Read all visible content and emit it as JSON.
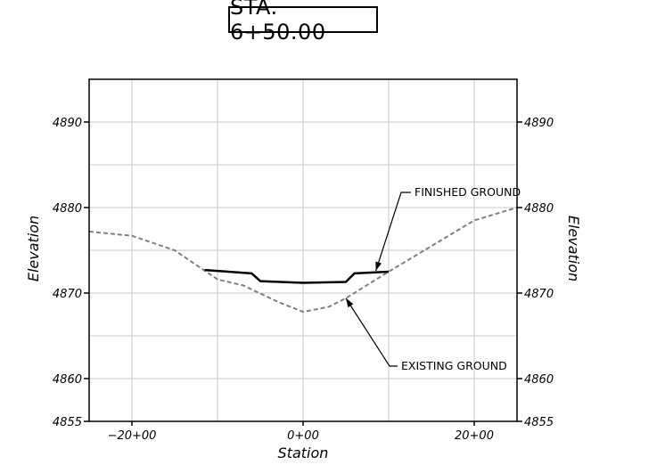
{
  "title": "STA. 6+50.00",
  "chart_data": {
    "type": "line",
    "title": "STA. 6+50.00",
    "xlabel": "Station",
    "ylabel": "Elevation",
    "ylabel_right": "Elevation",
    "xlim": [
      -25,
      25
    ],
    "ylim": [
      4855,
      4895
    ],
    "x_ticks": [
      {
        "value": -20,
        "label": "−20+00"
      },
      {
        "value": 0,
        "label": "0+00"
      },
      {
        "value": 20,
        "label": "20+00"
      }
    ],
    "y_ticks": [
      {
        "value": 4855,
        "label": "4855"
      },
      {
        "value": 4860,
        "label": "4860"
      },
      {
        "value": 4870,
        "label": "4870"
      },
      {
        "value": 4880,
        "label": "4880"
      },
      {
        "value": 4890,
        "label": "4890"
      }
    ],
    "grid": true,
    "series": [
      {
        "name": "EXISTING GROUND",
        "style": "dashed",
        "color": "#808080",
        "points": [
          [
            -25,
            4877.2
          ],
          [
            -20,
            4876.7
          ],
          [
            -15,
            4875.0
          ],
          [
            -10,
            4871.6
          ],
          [
            -7,
            4870.9
          ],
          [
            -3,
            4869.0
          ],
          [
            0,
            4867.8
          ],
          [
            3,
            4868.4
          ],
          [
            5,
            4869.4
          ],
          [
            10,
            4872.5
          ],
          [
            15,
            4875.5
          ],
          [
            20,
            4878.5
          ],
          [
            25,
            4880.0
          ]
        ]
      },
      {
        "name": "FINISHED GROUND",
        "style": "solid",
        "color": "#000000",
        "points": [
          [
            -11.5,
            4872.7
          ],
          [
            -6,
            4872.3
          ],
          [
            -5,
            4871.4
          ],
          [
            0,
            4871.2
          ],
          [
            5,
            4871.3
          ],
          [
            6,
            4872.3
          ],
          [
            10,
            4872.5
          ]
        ]
      }
    ],
    "annotations": [
      {
        "text": "FINISHED GROUND",
        "points_to": [
          8.5,
          4872.6
        ]
      },
      {
        "text": "EXISTING GROUND",
        "points_to": [
          5.0,
          4869.4
        ]
      }
    ]
  }
}
